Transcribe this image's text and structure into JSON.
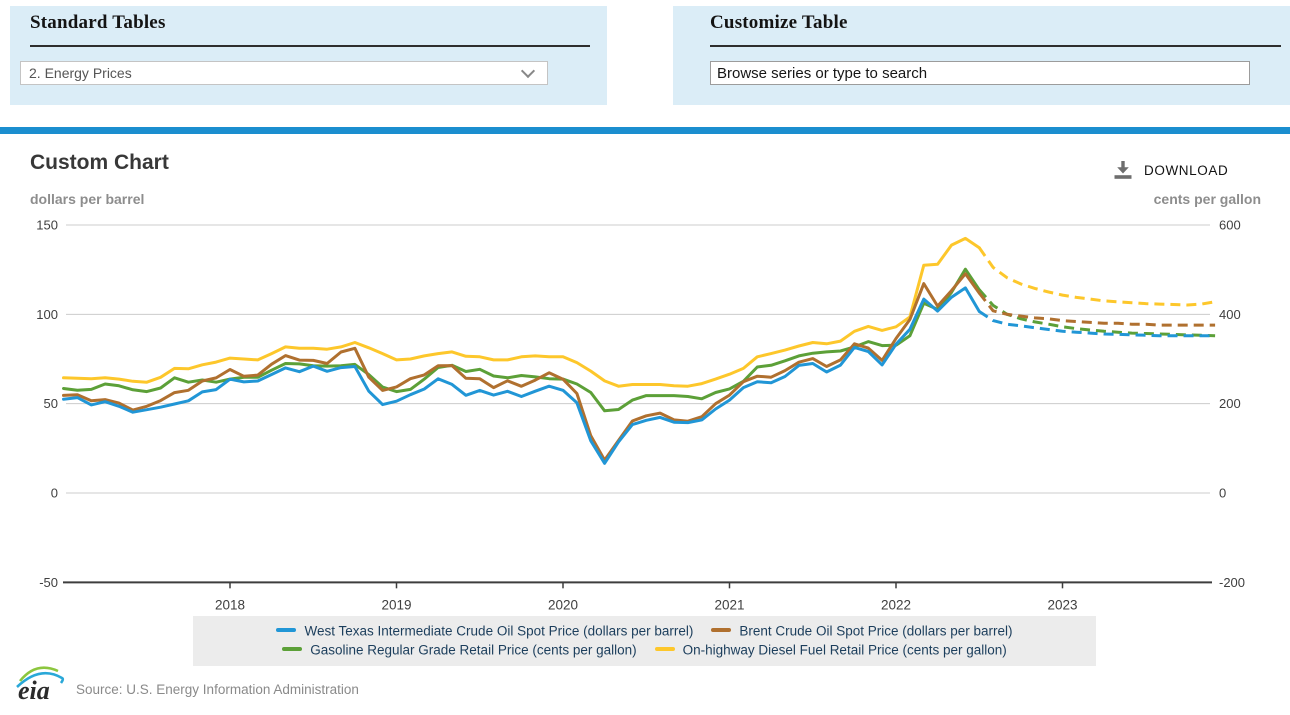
{
  "standard_tables": {
    "heading": "Standard Tables",
    "dropdown_value": "2. Energy Prices"
  },
  "customize_table": {
    "heading": "Customize Table",
    "search_placeholder": "Browse series or type to search"
  },
  "chart": {
    "title": "Custom Chart",
    "download_label": "DOWNLOAD",
    "left_axis_unit": "dollars per barrel",
    "right_axis_unit": "cents per gallon"
  },
  "colors": {
    "panel_bg": "#dbedf7",
    "divider_blue": "#1b8ecf",
    "legend_bg": "#ececec",
    "gridline": "#cccccc",
    "axis_line": "#3d3d3d",
    "tick_text": "#3f3f3f",
    "legend_text": "#1c3e5c"
  },
  "chart_data": {
    "type": "line",
    "x_start": "2017-01",
    "x_end": "2023-12",
    "x_tick_labels": [
      "2018",
      "2019",
      "2020",
      "2021",
      "2022",
      "2023"
    ],
    "left_axis": {
      "label": "dollars per barrel",
      "ticks": [
        150,
        100,
        50,
        0,
        -50
      ],
      "range": [
        -50,
        150
      ]
    },
    "right_axis": {
      "label": "cents per gallon",
      "ticks": [
        600,
        400,
        200,
        0,
        -200
      ],
      "range": [
        -200,
        600
      ]
    },
    "grid": true,
    "legend_position": "bottom",
    "forecast_start_index": 66,
    "series": [
      {
        "id": "wti",
        "label": "West Texas Intermediate Crude Oil Spot Price (dollars per barrel)",
        "color": "#2196d6",
        "axis": "left",
        "values": [
          52.5,
          53.4,
          49.3,
          51.1,
          48.5,
          45.2,
          46.6,
          48,
          49.8,
          51.6,
          56.6,
          57.9,
          63.7,
          62.2,
          62.7,
          66.3,
          70,
          67.9,
          71,
          68.1,
          70.2,
          70.8,
          57,
          49.5,
          51.4,
          55,
          58.2,
          63.9,
          60.8,
          54.7,
          57.4,
          54.8,
          56.9,
          54,
          57,
          59.8,
          57.5,
          50.5,
          29.2,
          16.6,
          28.6,
          38.3,
          40.7,
          42.3,
          39.6,
          39.4,
          40.9,
          47,
          52,
          59,
          62.3,
          61.7,
          65.2,
          71.4,
          72.5,
          67.7,
          71.6,
          81.5,
          79.2,
          71.7,
          83.2,
          91.6,
          108.5,
          101.8,
          109.6,
          114.8,
          101.6,
          96.5,
          94.5,
          93.5,
          92.5,
          91.5,
          90.5,
          90,
          89.5,
          89,
          88.8,
          88.5,
          88.3,
          88,
          88,
          88,
          88,
          88
        ]
      },
      {
        "id": "brent",
        "label": "Brent Crude Oil Spot Price (dollars per barrel)",
        "color": "#b0702f",
        "axis": "left",
        "values": [
          54.6,
          55,
          51.6,
          52.3,
          50.3,
          46.4,
          48.5,
          51.7,
          56.2,
          57.5,
          62.7,
          64.4,
          69.1,
          65.3,
          66,
          72.1,
          76.9,
          74.4,
          74.2,
          72.5,
          78.9,
          81,
          64.8,
          57.4,
          59.4,
          64,
          66.1,
          71.2,
          71.3,
          64.2,
          63.9,
          59,
          62.8,
          59.7,
          63.2,
          67.3,
          63.7,
          55.7,
          32,
          18.4,
          29.4,
          40.3,
          43.2,
          44.7,
          40.9,
          40.2,
          42.7,
          50,
          54.8,
          62.3,
          65.4,
          64.8,
          68.5,
          73.2,
          75.2,
          70.8,
          74.5,
          83.5,
          81.1,
          74.2,
          86.5,
          97.1,
          117.2,
          104.6,
          113.3,
          122.7,
          111.9,
          102,
          100,
          99,
          98,
          97.5,
          96.5,
          96,
          95.5,
          95,
          95,
          94.5,
          94.5,
          94,
          94,
          94,
          94,
          94
        ]
      },
      {
        "id": "gasoline",
        "label": "Gasoline Regular Grade Retail Price (cents per gallon)",
        "color": "#5ca038",
        "axis": "right",
        "values": [
          234,
          230,
          232,
          244,
          240,
          231,
          227,
          235,
          258,
          248,
          253,
          248,
          255,
          259,
          259,
          275,
          290,
          289,
          285,
          284,
          285,
          288,
          265,
          237,
          227,
          232,
          255,
          281,
          286,
          272,
          277,
          262,
          258,
          263,
          260,
          256,
          255,
          244,
          225,
          184,
          187,
          208,
          218,
          218,
          218,
          216,
          211,
          225,
          233,
          250,
          282,
          286,
          296,
          307,
          313,
          316,
          318,
          327,
          339,
          330,
          331,
          352,
          425,
          411,
          449,
          501,
          455,
          420,
          400,
          390,
          383,
          378,
          372,
          368,
          365,
          362,
          360,
          358,
          357,
          356,
          355,
          354,
          353,
          352
        ]
      },
      {
        "id": "diesel",
        "label": "On-highway Diesel Fuel Retail Price (cents per gallon)",
        "color": "#fdc72b",
        "axis": "right",
        "values": [
          258,
          257,
          256,
          258,
          255,
          250,
          248,
          259,
          279,
          278,
          287,
          293,
          302,
          300,
          298,
          312,
          327,
          324,
          324,
          322,
          327,
          337,
          325,
          312,
          298,
          300,
          307,
          312,
          316,
          306,
          305,
          298,
          298,
          305,
          307,
          305,
          305,
          292,
          273,
          251,
          239,
          243,
          243,
          243,
          240,
          239,
          245,
          255,
          266,
          279,
          305,
          312,
          320,
          329,
          337,
          334,
          340,
          362,
          373,
          364,
          372,
          394,
          510,
          512,
          555,
          570,
          549,
          505,
          482,
          468,
          458,
          450,
          443,
          438,
          434,
          430,
          428,
          426,
          424,
          423,
          422,
          421,
          423,
          428
        ]
      }
    ]
  },
  "footer": {
    "logo_text": "eia",
    "source": "Source: U.S. Energy Information Administration"
  }
}
